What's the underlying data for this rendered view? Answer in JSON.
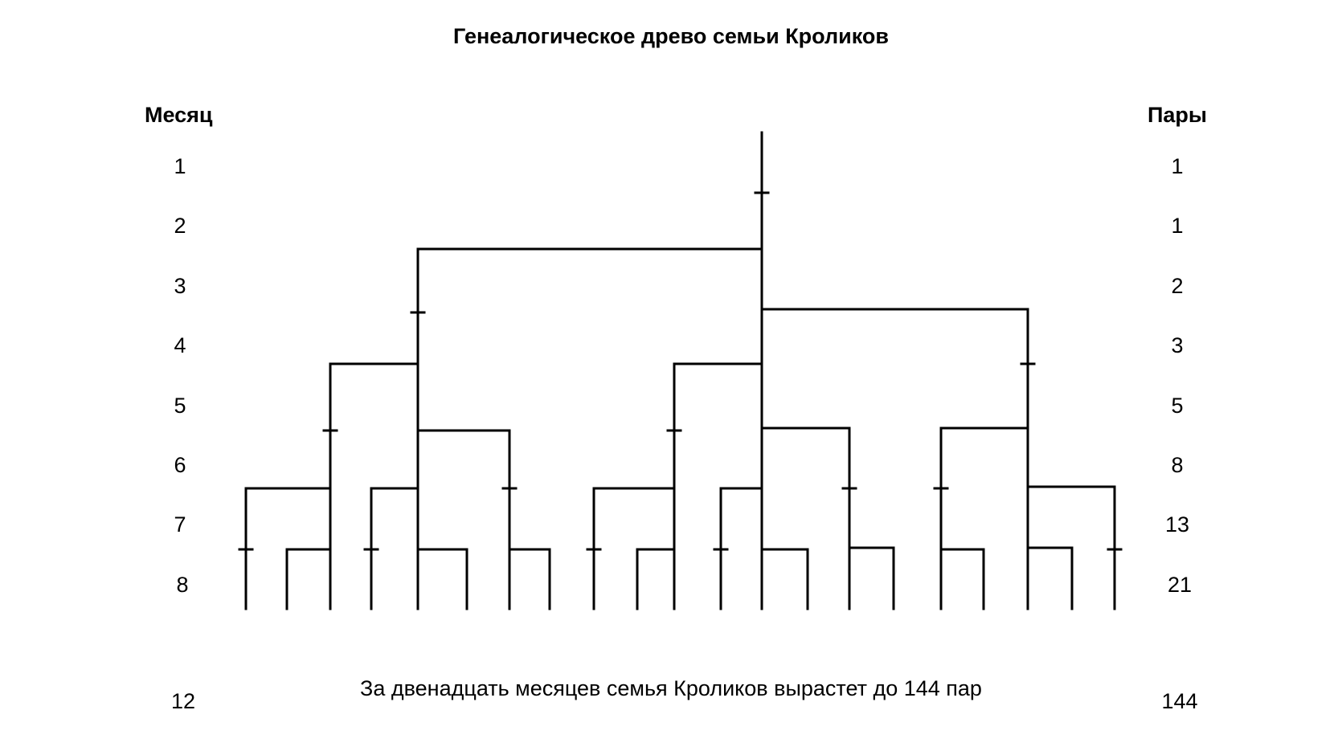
{
  "title": "Генеалогическое древо семьи Кроликов",
  "left_header": "Месяц",
  "right_header": "Пары",
  "rows": [
    {
      "month": "1",
      "pairs": "1"
    },
    {
      "month": "2",
      "pairs": "1"
    },
    {
      "month": "3",
      "pairs": "2"
    },
    {
      "month": "4",
      "pairs": "3"
    },
    {
      "month": "5",
      "pairs": "5"
    },
    {
      "month": "6",
      "pairs": "8"
    },
    {
      "month": "7",
      "pairs": "13"
    },
    {
      "month": "8",
      "pairs": "21"
    }
  ],
  "final_row": {
    "month": "12",
    "pairs": "144"
  },
  "caption": "За двенадцать месяцев семья Кроликов вырастет до 144 пар",
  "colors": {
    "line": "#000000",
    "background": "#ffffff"
  }
}
